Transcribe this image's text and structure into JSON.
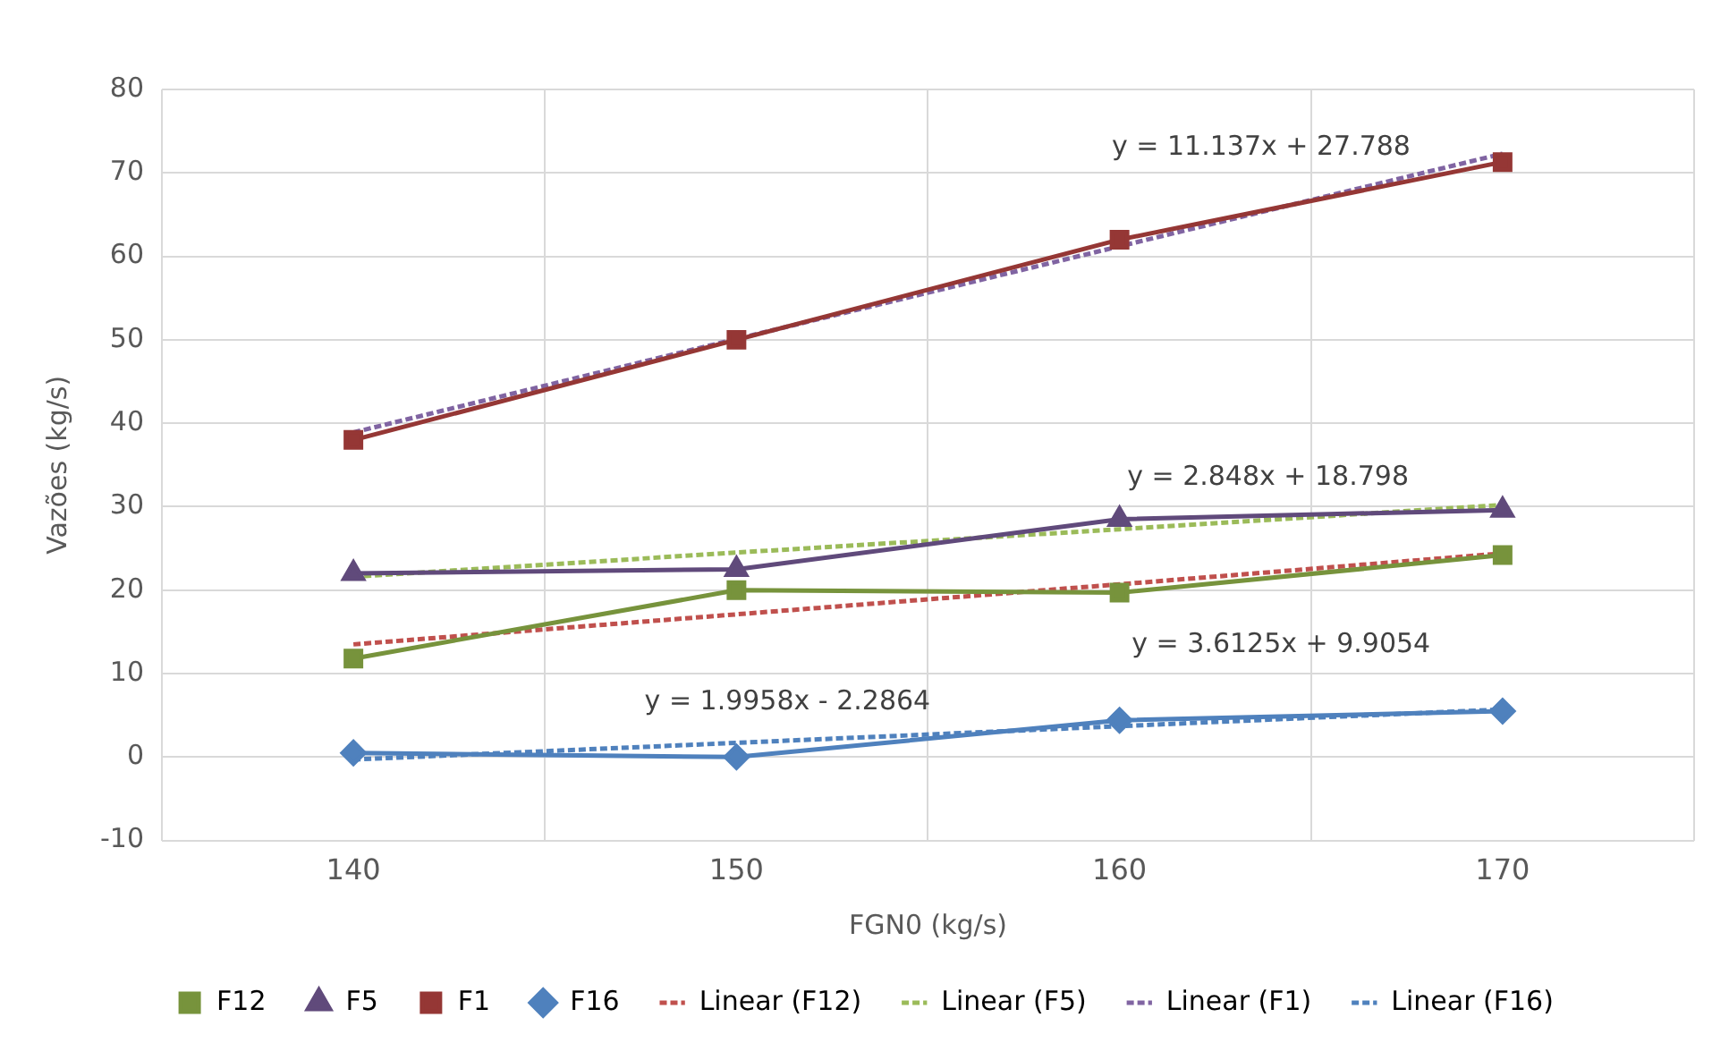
{
  "chart_data": {
    "type": "line",
    "xlabel": "FGN0 (kg/s)",
    "ylabel": "Vazões (kg/s)",
    "categories": [
      "140",
      "150",
      "160",
      "170"
    ],
    "ylim": [
      -10,
      80
    ],
    "yticks": [
      -10,
      0,
      10,
      20,
      30,
      40,
      50,
      60,
      70,
      80
    ],
    "grid": true,
    "legend": "bottom",
    "series": [
      {
        "name": "F12",
        "color": "#77933c",
        "marker": "square",
        "values": [
          11.8,
          20,
          19.7,
          24.2
        ]
      },
      {
        "name": "F5",
        "color": "#604a7b",
        "marker": "triangle",
        "values": [
          22,
          22.5,
          28.5,
          29.6
        ]
      },
      {
        "name": "F1",
        "color": "#953735",
        "marker": "square",
        "values": [
          38,
          50,
          62,
          71.3
        ]
      },
      {
        "name": "F16",
        "color": "#4f81bd",
        "marker": "diamond",
        "values": [
          0.5,
          0,
          4.4,
          5.5
        ]
      },
      {
        "name": "Linear (F12)",
        "color": "#c0504d",
        "marker": "none",
        "line_style": "dashed",
        "values": [
          13.5,
          17.1,
          20.7,
          24.4
        ]
      },
      {
        "name": "Linear (F5)",
        "color": "#9bbb59",
        "marker": "none",
        "line_style": "dashed",
        "values": [
          21.6,
          24.5,
          27.3,
          30.2
        ]
      },
      {
        "name": "Linear (F1)",
        "color": "#8064a2",
        "marker": "none",
        "line_style": "dashed",
        "values": [
          38.9,
          50.1,
          61.2,
          72.3
        ]
      },
      {
        "name": "Linear (F16)",
        "color": "#4f81bd",
        "marker": "none",
        "line_style": "dashed",
        "values": [
          -0.3,
          1.7,
          3.7,
          5.7
        ]
      }
    ],
    "annotations": [
      "y = 11.137x + 27.788",
      "y = 2.848x + 18.798",
      "y = 3.6125x + 9.9054",
      "y = 1.9958x - 2.2864"
    ]
  }
}
